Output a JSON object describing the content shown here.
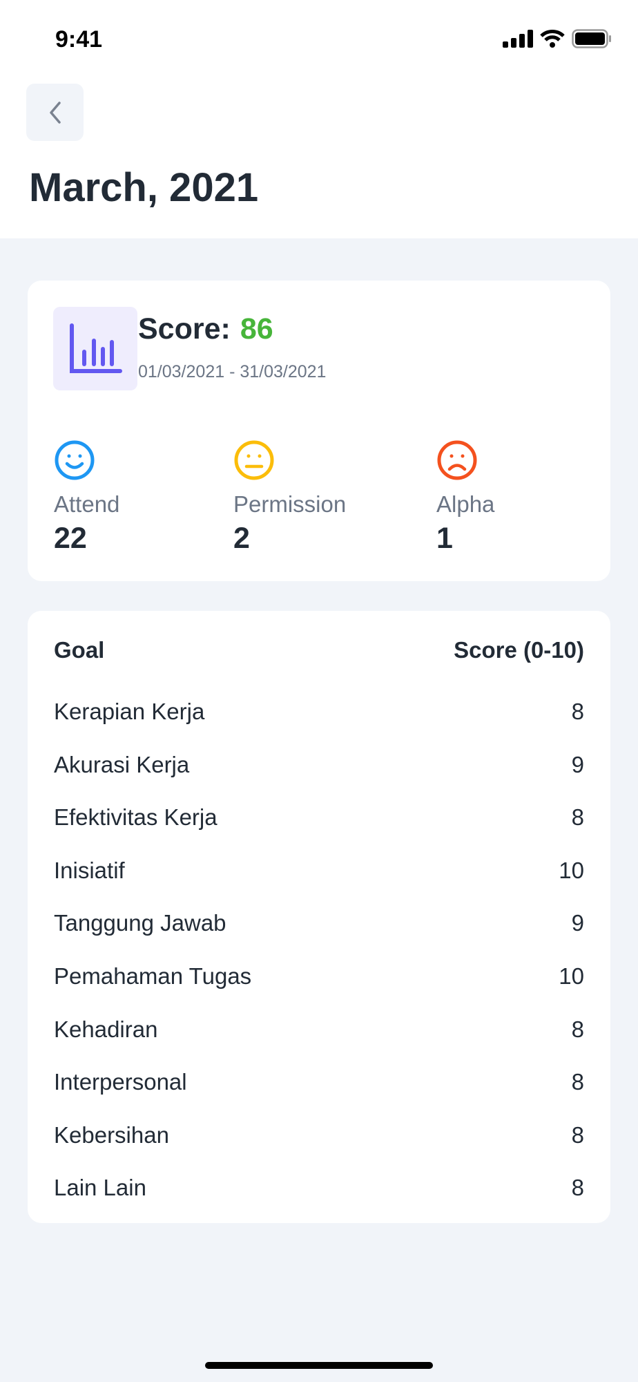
{
  "status_bar": {
    "time": "9:41"
  },
  "header": {
    "title": "March, 2021"
  },
  "summary": {
    "score_label": "Score:",
    "score_value": "86",
    "date_range": "01/03/2021 - 31/03/2021",
    "score_color": "#47b53a",
    "stats": [
      {
        "label": "Attend",
        "value": "22",
        "icon": "smile-icon",
        "color": "#1e97f3"
      },
      {
        "label": "Permission",
        "value": "2",
        "icon": "neutral-face-icon",
        "color": "#fbbd0a"
      },
      {
        "label": "Alpha",
        "value": "1",
        "icon": "sad-face-icon",
        "color": "#f4511e"
      }
    ]
  },
  "goals": {
    "header_goal": "Goal",
    "header_score": "Score (0-10)",
    "rows": [
      {
        "goal": "Kerapian Kerja",
        "score": "8"
      },
      {
        "goal": "Akurasi Kerja",
        "score": "9"
      },
      {
        "goal": "Efektivitas Kerja",
        "score": "8"
      },
      {
        "goal": "Inisiatif",
        "score": "10"
      },
      {
        "goal": "Tanggung Jawab",
        "score": "9"
      },
      {
        "goal": "Pemahaman Tugas",
        "score": "10"
      },
      {
        "goal": "Kehadiran",
        "score": "8"
      },
      {
        "goal": "Interpersonal",
        "score": "8"
      },
      {
        "goal": "Kebersihan",
        "score": "8"
      },
      {
        "goal": "Lain Lain",
        "score": "8"
      }
    ]
  }
}
